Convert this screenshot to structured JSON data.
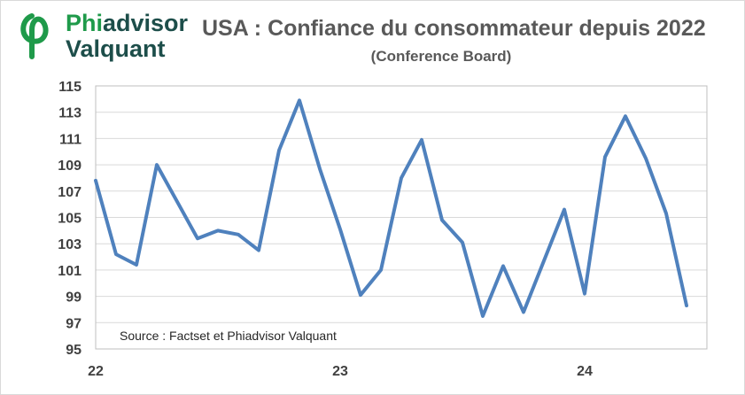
{
  "header": {
    "logo_line1_a": "Phi",
    "logo_line1_b": "advisor",
    "logo_line2": "Valquant",
    "title": "USA : Confiance du consommateur depuis 2022",
    "subtitle": "(Conference Board)"
  },
  "source_note": "Source : Factset et Phiadvisor Valquant",
  "colors": {
    "line": "#4f81bd",
    "grid": "#d9d9d9",
    "logo_green": "#1f9a4a",
    "logo_dark": "#1d4e4a"
  },
  "chart_data": {
    "type": "line",
    "title": "USA : Confiance du consommateur depuis 2022",
    "subtitle": "(Conference Board)",
    "xlabel": "",
    "ylabel": "",
    "ylim": [
      95,
      115
    ],
    "yticks": [
      95,
      97,
      99,
      101,
      103,
      105,
      107,
      109,
      111,
      113,
      115
    ],
    "xticks": [
      {
        "label": "22",
        "x": "2022-01"
      },
      {
        "label": "23",
        "x": "2023-01"
      },
      {
        "label": "24",
        "x": "2024-01"
      }
    ],
    "grid": true,
    "legend": "none",
    "series": [
      {
        "x": [
          "2022-01",
          "2022-02",
          "2022-03",
          "2022-04",
          "2022-05",
          "2022-06",
          "2022-07",
          "2022-08",
          "2022-09",
          "2022-10",
          "2022-11",
          "2022-12",
          "2023-01",
          "2023-02",
          "2023-03",
          "2023-04",
          "2023-05",
          "2023-06",
          "2023-07",
          "2023-08",
          "2023-09",
          "2023-10",
          "2023-11",
          "2023-12",
          "2024-01",
          "2024-02",
          "2024-03",
          "2024-04",
          "2024-05",
          "2024-06"
        ],
        "values": [
          107.8,
          102.2,
          101.4,
          109.0,
          106.2,
          103.4,
          104.0,
          103.7,
          102.5,
          110.1,
          113.9,
          108.7,
          104.1,
          99.1,
          101.0,
          108.0,
          110.9,
          104.8,
          103.1,
          97.5,
          101.3,
          97.8,
          101.7,
          105.6,
          99.2,
          109.6,
          112.7,
          109.5,
          105.3,
          98.3
        ]
      }
    ]
  }
}
